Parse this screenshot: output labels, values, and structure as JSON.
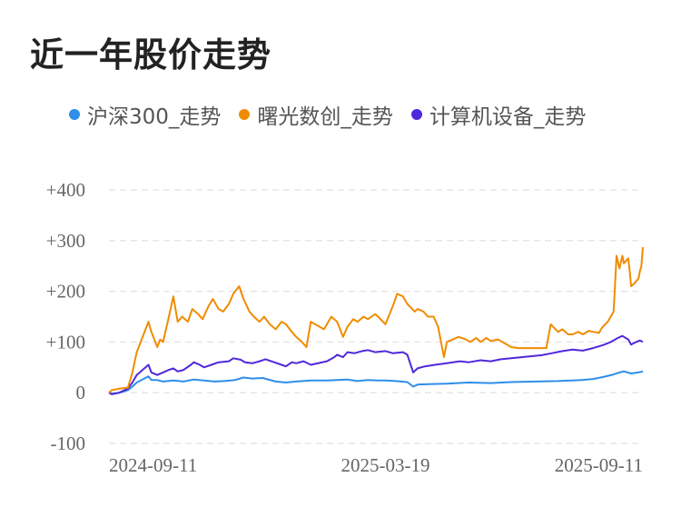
{
  "chart_data": {
    "type": "line",
    "title": "近一年股价走势",
    "y_ticks": [
      "+400",
      "+300",
      "+200",
      "+100",
      "0",
      "-100"
    ],
    "y_tick_values": [
      400,
      300,
      200,
      100,
      0,
      -100
    ],
    "ylim": [
      -100,
      400
    ],
    "x_ticks": [
      "2024-09-11",
      "2025-03-19",
      "2025-09-11"
    ],
    "x_range": [
      "2024-09-11",
      "2025-09-11"
    ],
    "grid": true,
    "legend_position": "top",
    "series": [
      {
        "name": "沪深300_走势",
        "color": "#2f8ee8",
        "points": [
          [
            "2024-09-11",
            0
          ],
          [
            "2024-09-13",
            -2
          ],
          [
            "2024-09-18",
            0
          ],
          [
            "2024-09-24",
            5
          ],
          [
            "2024-09-27",
            12
          ],
          [
            "2024-09-30",
            20
          ],
          [
            "2024-10-08",
            32
          ],
          [
            "2024-10-10",
            25
          ],
          [
            "2024-10-14",
            25
          ],
          [
            "2024-10-18",
            22
          ],
          [
            "2024-10-25",
            24
          ],
          [
            "2024-11-01",
            22
          ],
          [
            "2024-11-08",
            26
          ],
          [
            "2024-11-15",
            24
          ],
          [
            "2024-11-22",
            22
          ],
          [
            "2024-11-29",
            23
          ],
          [
            "2024-12-06",
            25
          ],
          [
            "2024-12-12",
            30
          ],
          [
            "2024-12-18",
            28
          ],
          [
            "2024-12-25",
            29
          ],
          [
            "2025-01-03",
            22
          ],
          [
            "2025-01-10",
            20
          ],
          [
            "2025-01-17",
            22
          ],
          [
            "2025-01-27",
            24
          ],
          [
            "2025-02-07",
            24
          ],
          [
            "2025-02-14",
            25
          ],
          [
            "2025-02-21",
            26
          ],
          [
            "2025-02-28",
            23
          ],
          [
            "2025-03-07",
            25
          ],
          [
            "2025-03-14",
            24
          ],
          [
            "2025-03-19",
            24
          ],
          [
            "2025-03-26",
            23
          ],
          [
            "2025-04-03",
            21
          ],
          [
            "2025-04-07",
            12
          ],
          [
            "2025-04-10",
            16
          ],
          [
            "2025-04-18",
            17
          ],
          [
            "2025-04-30",
            18
          ],
          [
            "2025-05-15",
            20
          ],
          [
            "2025-05-30",
            19
          ],
          [
            "2025-06-13",
            21
          ],
          [
            "2025-06-30",
            22
          ],
          [
            "2025-07-15",
            23
          ],
          [
            "2025-07-31",
            25
          ],
          [
            "2025-08-08",
            27
          ],
          [
            "2025-08-15",
            31
          ],
          [
            "2025-08-22",
            36
          ],
          [
            "2025-08-26",
            40
          ],
          [
            "2025-08-29",
            42
          ],
          [
            "2025-09-03",
            38
          ],
          [
            "2025-09-08",
            40
          ],
          [
            "2025-09-11",
            42
          ]
        ]
      },
      {
        "name": "曙光数创_走势",
        "color": "#f08c00",
        "points": [
          [
            "2024-09-11",
            0
          ],
          [
            "2024-09-13",
            5
          ],
          [
            "2024-09-18",
            8
          ],
          [
            "2024-09-24",
            10
          ],
          [
            "2024-09-27",
            40
          ],
          [
            "2024-09-30",
            80
          ],
          [
            "2024-10-08",
            140
          ],
          [
            "2024-10-10",
            120
          ],
          [
            "2024-10-14",
            90
          ],
          [
            "2024-10-16",
            105
          ],
          [
            "2024-10-18",
            100
          ],
          [
            "2024-10-22",
            150
          ],
          [
            "2024-10-25",
            190
          ],
          [
            "2024-10-28",
            140
          ],
          [
            "2024-10-31",
            150
          ],
          [
            "2024-11-04",
            140
          ],
          [
            "2024-11-07",
            165
          ],
          [
            "2024-11-11",
            155
          ],
          [
            "2024-11-14",
            145
          ],
          [
            "2024-11-18",
            170
          ],
          [
            "2024-11-21",
            185
          ],
          [
            "2024-11-25",
            165
          ],
          [
            "2024-11-28",
            160
          ],
          [
            "2024-12-02",
            175
          ],
          [
            "2024-12-05",
            195
          ],
          [
            "2024-12-09",
            210
          ],
          [
            "2024-12-12",
            185
          ],
          [
            "2024-12-16",
            160
          ],
          [
            "2024-12-19",
            150
          ],
          [
            "2024-12-23",
            140
          ],
          [
            "2024-12-26",
            150
          ],
          [
            "2024-12-30",
            135
          ],
          [
            "2025-01-03",
            125
          ],
          [
            "2025-01-07",
            140
          ],
          [
            "2025-01-10",
            135
          ],
          [
            "2025-01-14",
            120
          ],
          [
            "2025-01-17",
            110
          ],
          [
            "2025-01-21",
            100
          ],
          [
            "2025-01-24",
            90
          ],
          [
            "2025-01-27",
            140
          ],
          [
            "2025-02-05",
            125
          ],
          [
            "2025-02-10",
            150
          ],
          [
            "2025-02-14",
            140
          ],
          [
            "2025-02-18",
            110
          ],
          [
            "2025-02-21",
            130
          ],
          [
            "2025-02-25",
            145
          ],
          [
            "2025-02-28",
            140
          ],
          [
            "2025-03-04",
            150
          ],
          [
            "2025-03-07",
            145
          ],
          [
            "2025-03-12",
            155
          ],
          [
            "2025-03-14",
            150
          ],
          [
            "2025-03-19",
            135
          ],
          [
            "2025-03-24",
            170
          ],
          [
            "2025-03-27",
            195
          ],
          [
            "2025-03-31",
            190
          ],
          [
            "2025-04-03",
            175
          ],
          [
            "2025-04-08",
            160
          ],
          [
            "2025-04-10",
            165
          ],
          [
            "2025-04-14",
            160
          ],
          [
            "2025-04-17",
            150
          ],
          [
            "2025-04-21",
            150
          ],
          [
            "2025-04-24",
            130
          ],
          [
            "2025-04-28",
            70
          ],
          [
            "2025-04-30",
            100
          ],
          [
            "2025-05-08",
            110
          ],
          [
            "2025-05-13",
            105
          ],
          [
            "2025-05-16",
            100
          ],
          [
            "2025-05-20",
            108
          ],
          [
            "2025-05-23",
            100
          ],
          [
            "2025-05-27",
            108
          ],
          [
            "2025-05-30",
            102
          ],
          [
            "2025-06-04",
            105
          ],
          [
            "2025-06-10",
            95
          ],
          [
            "2025-06-13",
            90
          ],
          [
            "2025-06-18",
            88
          ],
          [
            "2025-06-23",
            88
          ],
          [
            "2025-06-27",
            88
          ],
          [
            "2025-07-02",
            88
          ],
          [
            "2025-07-07",
            88
          ],
          [
            "2025-07-10",
            135
          ],
          [
            "2025-07-15",
            120
          ],
          [
            "2025-07-18",
            125
          ],
          [
            "2025-07-22",
            115
          ],
          [
            "2025-07-25",
            115
          ],
          [
            "2025-07-29",
            120
          ],
          [
            "2025-08-01",
            115
          ],
          [
            "2025-08-05",
            122
          ],
          [
            "2025-08-08",
            120
          ],
          [
            "2025-08-12",
            118
          ],
          [
            "2025-08-14",
            128
          ],
          [
            "2025-08-18",
            140
          ],
          [
            "2025-08-20",
            150
          ],
          [
            "2025-08-22",
            160
          ],
          [
            "2025-08-24",
            270
          ],
          [
            "2025-08-26",
            245
          ],
          [
            "2025-08-28",
            270
          ],
          [
            "2025-08-29",
            255
          ],
          [
            "2025-09-01",
            265
          ],
          [
            "2025-09-02",
            240
          ],
          [
            "2025-09-03",
            210
          ],
          [
            "2025-09-05",
            215
          ],
          [
            "2025-09-08",
            225
          ],
          [
            "2025-09-09",
            240
          ],
          [
            "2025-09-10",
            250
          ],
          [
            "2025-09-11",
            287
          ]
        ]
      },
      {
        "name": "计算机设备_走势",
        "color": "#5028dc",
        "points": [
          [
            "2024-09-11",
            0
          ],
          [
            "2024-09-13",
            -3
          ],
          [
            "2024-09-18",
            0
          ],
          [
            "2024-09-24",
            8
          ],
          [
            "2024-09-27",
            20
          ],
          [
            "2024-09-30",
            35
          ],
          [
            "2024-10-08",
            55
          ],
          [
            "2024-10-10",
            40
          ],
          [
            "2024-10-14",
            35
          ],
          [
            "2024-10-18",
            40
          ],
          [
            "2024-10-22",
            45
          ],
          [
            "2024-10-25",
            48
          ],
          [
            "2024-10-28",
            42
          ],
          [
            "2024-11-01",
            45
          ],
          [
            "2024-11-06",
            55
          ],
          [
            "2024-11-08",
            60
          ],
          [
            "2024-11-12",
            55
          ],
          [
            "2024-11-15",
            50
          ],
          [
            "2024-11-20",
            55
          ],
          [
            "2024-11-25",
            60
          ],
          [
            "2024-12-02",
            62
          ],
          [
            "2024-12-05",
            68
          ],
          [
            "2024-12-10",
            65
          ],
          [
            "2024-12-13",
            60
          ],
          [
            "2024-12-18",
            58
          ],
          [
            "2024-12-23",
            62
          ],
          [
            "2024-12-27",
            66
          ],
          [
            "2025-01-02",
            60
          ],
          [
            "2025-01-07",
            55
          ],
          [
            "2025-01-10",
            52
          ],
          [
            "2025-01-14",
            60
          ],
          [
            "2025-01-17",
            58
          ],
          [
            "2025-01-22",
            62
          ],
          [
            "2025-01-27",
            55
          ],
          [
            "2025-02-07",
            62
          ],
          [
            "2025-02-12",
            70
          ],
          [
            "2025-02-14",
            75
          ],
          [
            "2025-02-18",
            70
          ],
          [
            "2025-02-21",
            80
          ],
          [
            "2025-02-26",
            78
          ],
          [
            "2025-03-03",
            82
          ],
          [
            "2025-03-07",
            84
          ],
          [
            "2025-03-12",
            80
          ],
          [
            "2025-03-19",
            82
          ],
          [
            "2025-03-24",
            78
          ],
          [
            "2025-03-31",
            80
          ],
          [
            "2025-04-03",
            75
          ],
          [
            "2025-04-07",
            40
          ],
          [
            "2025-04-10",
            48
          ],
          [
            "2025-04-15",
            52
          ],
          [
            "2025-04-22",
            55
          ],
          [
            "2025-04-30",
            58
          ],
          [
            "2025-05-09",
            62
          ],
          [
            "2025-05-15",
            60
          ],
          [
            "2025-05-23",
            64
          ],
          [
            "2025-05-30",
            62
          ],
          [
            "2025-06-06",
            66
          ],
          [
            "2025-06-13",
            68
          ],
          [
            "2025-06-20",
            70
          ],
          [
            "2025-06-27",
            72
          ],
          [
            "2025-07-04",
            74
          ],
          [
            "2025-07-11",
            78
          ],
          [
            "2025-07-18",
            82
          ],
          [
            "2025-07-25",
            85
          ],
          [
            "2025-08-01",
            83
          ],
          [
            "2025-08-08",
            88
          ],
          [
            "2025-08-15",
            94
          ],
          [
            "2025-08-20",
            100
          ],
          [
            "2025-08-25",
            108
          ],
          [
            "2025-08-28",
            112
          ],
          [
            "2025-09-01",
            105
          ],
          [
            "2025-09-03",
            95
          ],
          [
            "2025-09-05",
            98
          ],
          [
            "2025-09-09",
            103
          ],
          [
            "2025-09-11",
            100
          ]
        ]
      }
    ]
  }
}
